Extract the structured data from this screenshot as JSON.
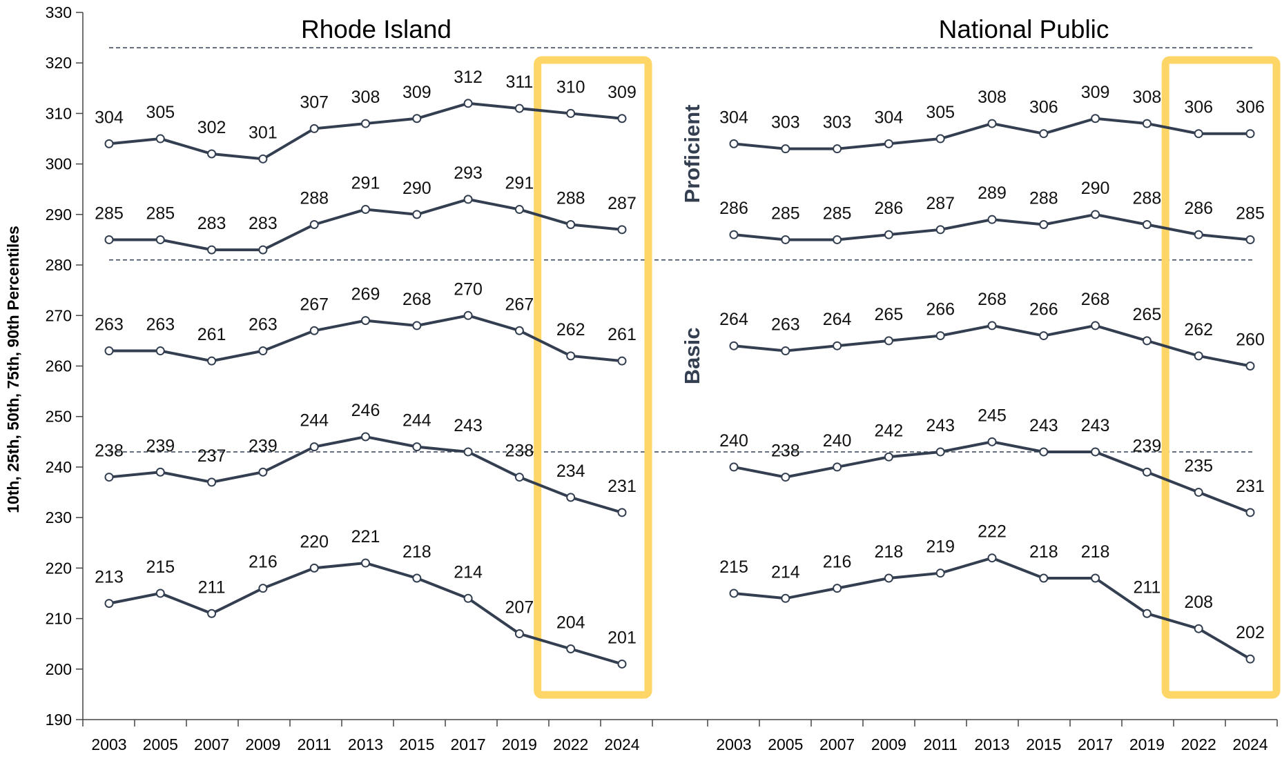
{
  "chart_data": {
    "type": "line",
    "ylabel": "10th, 25th, 50th, 75th, 90th Percentiles",
    "ylim": [
      190,
      330
    ],
    "yticks": [
      190,
      200,
      210,
      220,
      230,
      240,
      250,
      260,
      270,
      280,
      290,
      300,
      310,
      320,
      330
    ],
    "categories": [
      "2003",
      "2005",
      "2007",
      "2009",
      "2011",
      "2013",
      "2015",
      "2017",
      "2019",
      "2022",
      "2024"
    ],
    "reference_lines": [
      {
        "value": 323
      },
      {
        "value": 281
      },
      {
        "value": 243
      }
    ],
    "band_labels": [
      {
        "label": "Proficient",
        "center": 302
      },
      {
        "label": "Basic",
        "center": 262
      }
    ],
    "line_color": "#333f50",
    "highlight_color": "#fdd667",
    "highlight_categories": [
      "2022",
      "2024"
    ],
    "panels": [
      {
        "title": "Rhode Island",
        "series": [
          {
            "values": [
              304,
              305,
              302,
              301,
              307,
              308,
              309,
              312,
              311,
              310,
              309
            ]
          },
          {
            "values": [
              285,
              285,
              283,
              283,
              288,
              291,
              290,
              293,
              291,
              288,
              287
            ]
          },
          {
            "values": [
              263,
              263,
              261,
              263,
              267,
              269,
              268,
              270,
              267,
              262,
              261
            ]
          },
          {
            "values": [
              238,
              239,
              237,
              239,
              244,
              246,
              244,
              243,
              238,
              234,
              231
            ]
          },
          {
            "values": [
              213,
              215,
              211,
              216,
              220,
              221,
              218,
              214,
              207,
              204,
              201
            ]
          }
        ]
      },
      {
        "title": "National Public",
        "series": [
          {
            "values": [
              304,
              303,
              303,
              304,
              305,
              308,
              306,
              309,
              308,
              306,
              306
            ]
          },
          {
            "values": [
              286,
              285,
              285,
              286,
              287,
              289,
              288,
              290,
              288,
              286,
              285
            ]
          },
          {
            "values": [
              264,
              263,
              264,
              265,
              266,
              268,
              266,
              268,
              265,
              262,
              260
            ]
          },
          {
            "values": [
              240,
              238,
              240,
              242,
              243,
              245,
              243,
              243,
              239,
              235,
              231
            ]
          },
          {
            "values": [
              215,
              214,
              216,
              218,
              219,
              222,
              218,
              218,
              211,
              208,
              202
            ]
          }
        ]
      }
    ]
  }
}
